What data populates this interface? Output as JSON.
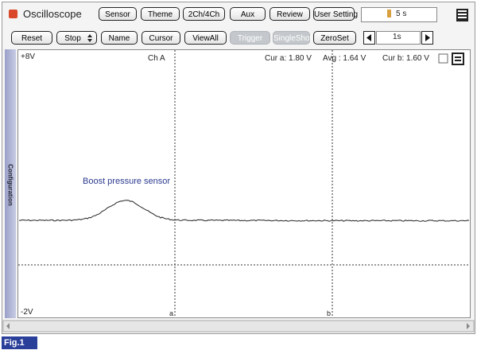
{
  "header": {
    "title": "Oscilloscope",
    "buttons": [
      "Sensor",
      "Theme",
      "2Ch/4Ch",
      "Aux",
      "Review",
      "User Setting"
    ],
    "time": "5 s"
  },
  "toolbar": {
    "buttons": [
      "Reset",
      "Stop",
      "Name",
      "Cursor",
      "ViewAll",
      "Trigger",
      "SingleShot",
      "ZeroSet"
    ],
    "interval": "1s"
  },
  "scope": {
    "ymax": "+8V",
    "ymin": "-2V",
    "channel": "Ch A",
    "cur_a": "Cur a: 1.80 V",
    "avg": "Avg : 1.64 V",
    "cur_b": "Cur b: 1.60 V",
    "annotation": "Boost pressure sensor",
    "cursor_a": "a",
    "cursor_b": "b"
  },
  "side_tab": "Configuration",
  "caption": "Fig.1"
}
